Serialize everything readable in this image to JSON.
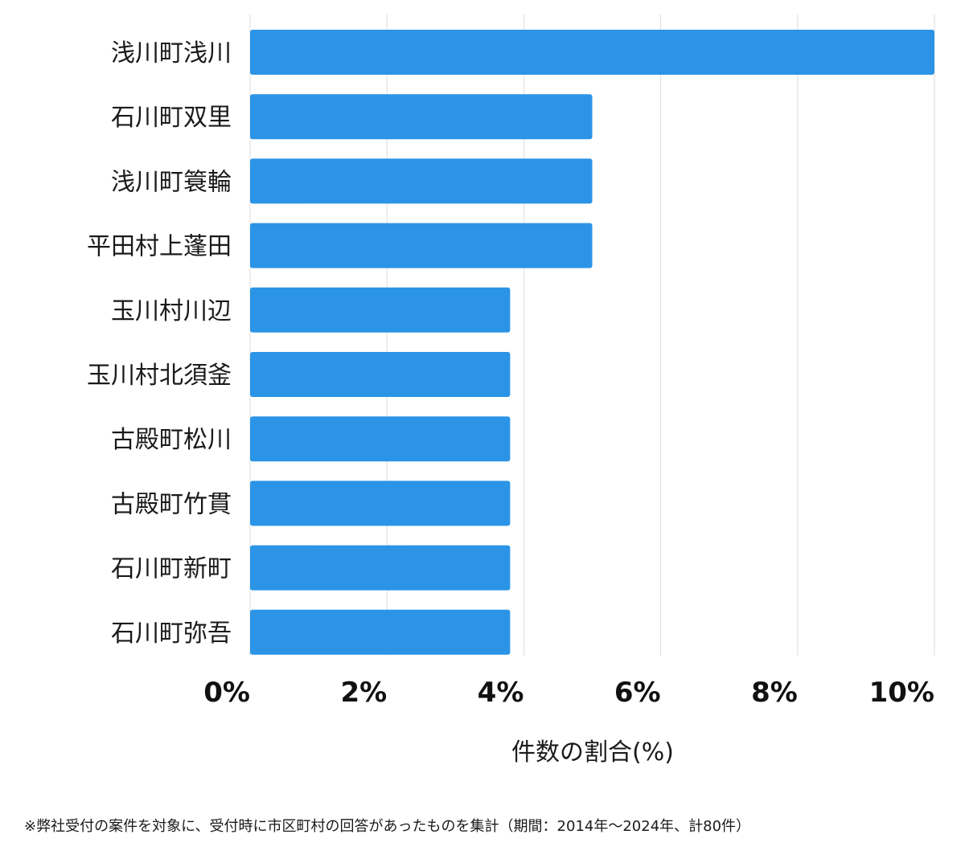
{
  "chart_data": {
    "type": "bar",
    "orientation": "horizontal",
    "categories": [
      "浅川町浅川",
      "石川町双里",
      "浅川町簑輪",
      "平田村上蓬田",
      "玉川村川辺",
      "玉川村北須釜",
      "古殿町松川",
      "古殿町竹貫",
      "石川町新町",
      "石川町弥吾"
    ],
    "values": [
      10,
      5,
      5,
      5,
      3.8,
      3.8,
      3.8,
      3.8,
      3.8,
      3.8
    ],
    "xlim": [
      0,
      10
    ],
    "xticks": [
      0,
      2,
      4,
      6,
      8,
      10
    ],
    "xtick_labels": [
      "0%",
      "2%",
      "4%",
      "6%",
      "8%",
      "10%"
    ],
    "xlabel": "件数の割合(%)",
    "ylabel": "",
    "grid": true,
    "bar_color": "#2b94e6"
  },
  "footnote": "※弊社受付の案件を対象に、受付時に市区町村の回答があったものを集計（期間：2014年〜2024年、計80件）"
}
